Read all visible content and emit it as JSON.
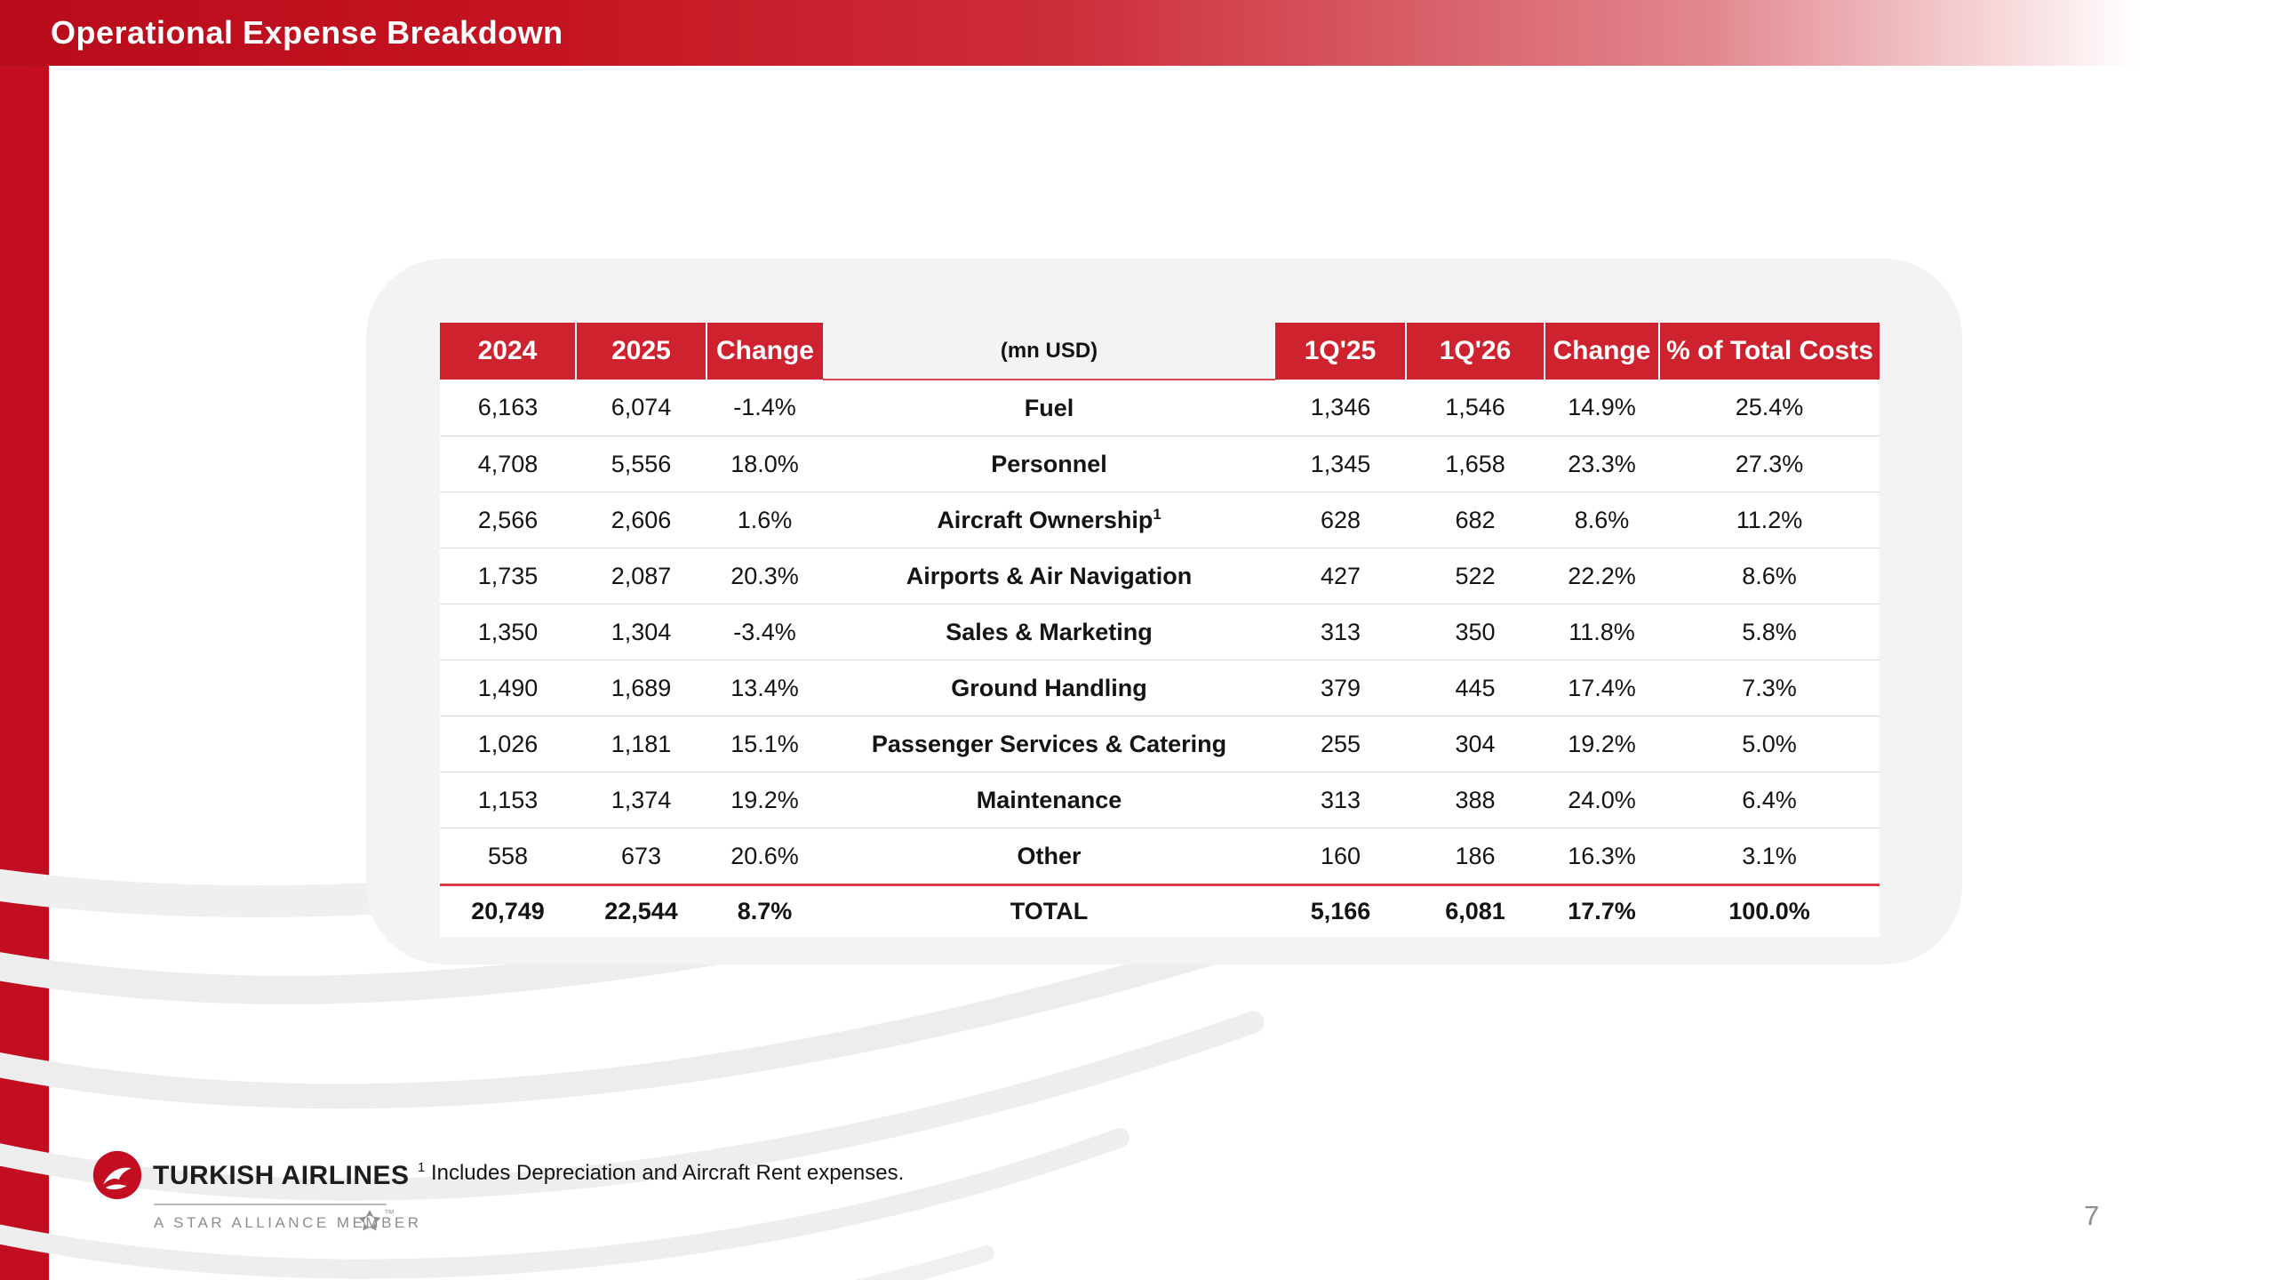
{
  "slide": {
    "title": "Operational Expense Breakdown",
    "page_number": "7",
    "footnote": {
      "ref": "1",
      "text": "Includes Depreciation and Aircraft Rent expenses."
    }
  },
  "logo": {
    "brand": "TURKISH AIRLINES",
    "tagline": "A STAR ALLIANCE MEMBER",
    "trademark": "™"
  },
  "colors": {
    "brand_red": "#C20E20",
    "table_header_red": "#CE222E",
    "total_rule_red": "#DC3744",
    "panel_gray": "#F3F3F3",
    "page_number_gray": "#8C8C8C"
  },
  "chart_data": {
    "type": "table",
    "title": "Operational Expense Breakdown",
    "unit": "mn USD",
    "columns": [
      "2024",
      "2025",
      "Change",
      "(mn USD)",
      "1Q'25",
      "1Q'26",
      "Change",
      "% of Total Costs"
    ],
    "rows": [
      {
        "y2024": "6,163",
        "y2025": "6,074",
        "change_fy": "-1.4%",
        "category": "Fuel",
        "footnote_ref": "",
        "q1_25": "1,346",
        "q1_26": "1,546",
        "change_q": "14.9%",
        "share_of_total": "25.4%"
      },
      {
        "y2024": "4,708",
        "y2025": "5,556",
        "change_fy": "18.0%",
        "category": "Personnel",
        "footnote_ref": "",
        "q1_25": "1,345",
        "q1_26": "1,658",
        "change_q": "23.3%",
        "share_of_total": "27.3%"
      },
      {
        "y2024": "2,566",
        "y2025": "2,606",
        "change_fy": "1.6%",
        "category": "Aircraft Ownership",
        "footnote_ref": "1",
        "q1_25": "628",
        "q1_26": "682",
        "change_q": "8.6%",
        "share_of_total": "11.2%"
      },
      {
        "y2024": "1,735",
        "y2025": "2,087",
        "change_fy": "20.3%",
        "category": "Airports & Air Navigation",
        "footnote_ref": "",
        "q1_25": "427",
        "q1_26": "522",
        "change_q": "22.2%",
        "share_of_total": "8.6%"
      },
      {
        "y2024": "1,350",
        "y2025": "1,304",
        "change_fy": "-3.4%",
        "category": "Sales & Marketing",
        "footnote_ref": "",
        "q1_25": "313",
        "q1_26": "350",
        "change_q": "11.8%",
        "share_of_total": "5.8%"
      },
      {
        "y2024": "1,490",
        "y2025": "1,689",
        "change_fy": "13.4%",
        "category": "Ground Handling",
        "footnote_ref": "",
        "q1_25": "379",
        "q1_26": "445",
        "change_q": "17.4%",
        "share_of_total": "7.3%"
      },
      {
        "y2024": "1,026",
        "y2025": "1,181",
        "change_fy": "15.1%",
        "category": "Passenger Services & Catering",
        "footnote_ref": "",
        "q1_25": "255",
        "q1_26": "304",
        "change_q": "19.2%",
        "share_of_total": "5.0%"
      },
      {
        "y2024": "1,153",
        "y2025": "1,374",
        "change_fy": "19.2%",
        "category": "Maintenance",
        "footnote_ref": "",
        "q1_25": "313",
        "q1_26": "388",
        "change_q": "24.0%",
        "share_of_total": "6.4%"
      },
      {
        "y2024": "558",
        "y2025": "673",
        "change_fy": "20.6%",
        "category": "Other",
        "footnote_ref": "",
        "q1_25": "160",
        "q1_26": "186",
        "change_q": "16.3%",
        "share_of_total": "3.1%"
      }
    ],
    "total": {
      "y2024": "20,749",
      "y2025": "22,544",
      "change_fy": "8.7%",
      "category": "TOTAL",
      "footnote_ref": "",
      "q1_25": "5,166",
      "q1_26": "6,081",
      "change_q": "17.7%",
      "share_of_total": "100.0%"
    }
  }
}
